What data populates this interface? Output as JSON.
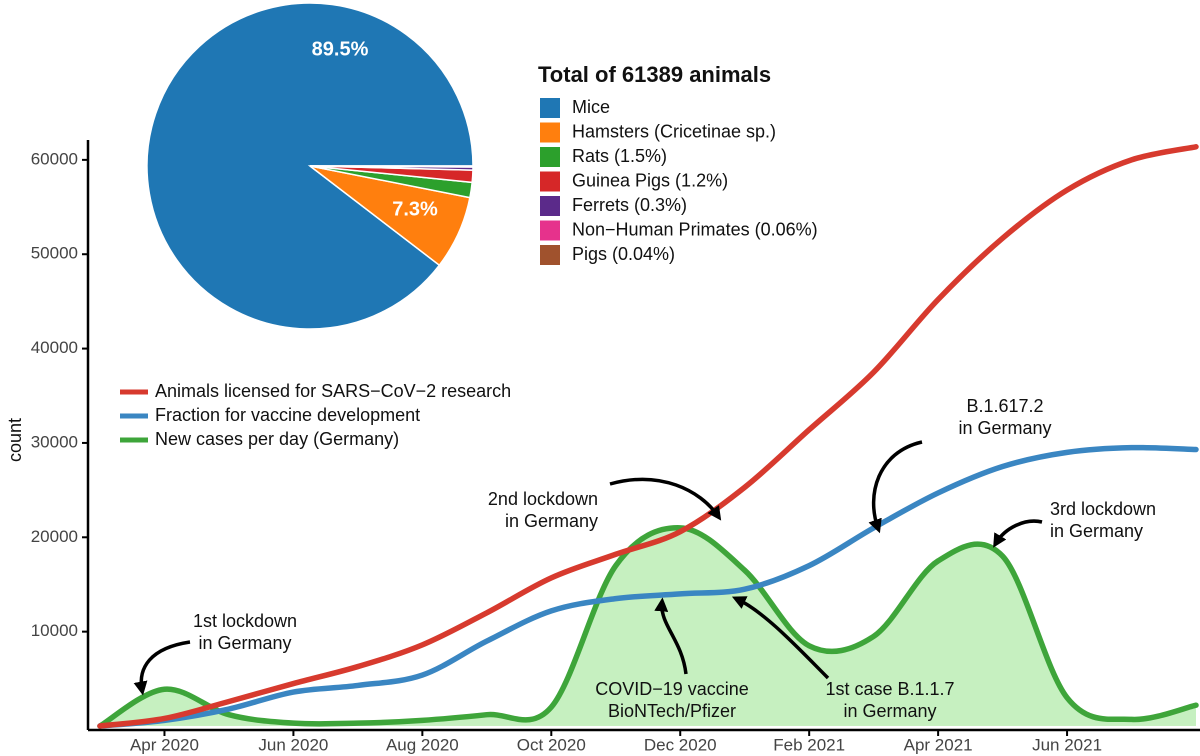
{
  "chart_data": [
    {
      "type": "line",
      "y_label": "count",
      "x": [
        "Mar 2020",
        "Apr 2020",
        "May 2020",
        "Jun 2020",
        "Jul 2020",
        "Aug 2020",
        "Sep 2020",
        "Oct 2020",
        "Nov 2020",
        "Dec 2020",
        "Jan 2021",
        "Feb 2021",
        "Mar 2021",
        "Apr 2021",
        "May 2021",
        "Jun 2021",
        "Jul 2021",
        "Aug 2021"
      ],
      "xticks": [
        "Apr 2020",
        "Jun 2020",
        "Aug 2020",
        "Oct 2020",
        "Dec 2020",
        "Feb 2021",
        "Apr 2021",
        "Jun 2021"
      ],
      "ylim": [
        0,
        62000
      ],
      "yticks": [
        10000,
        20000,
        30000,
        40000,
        50000,
        60000
      ],
      "legend": "left",
      "series": [
        {
          "name": "Animals licensed for SARS−CoV−2 research",
          "color": "#d73a2e",
          "values": [
            0,
            800,
            2600,
            4500,
            6300,
            8600,
            12000,
            15700,
            18200,
            20600,
            25300,
            31400,
            37500,
            45200,
            51700,
            56800,
            60000,
            61389
          ]
        },
        {
          "name": "Fraction for vaccine development",
          "color": "#3a86c2",
          "values": [
            0,
            600,
            1800,
            3600,
            4300,
            5400,
            9000,
            12200,
            13500,
            14000,
            14500,
            17000,
            21000,
            24700,
            27500,
            29000,
            29500,
            29300
          ]
        },
        {
          "name": "New cases per day (Germany)",
          "color": "#3ea53a",
          "fill": "#c6f0c0",
          "values": [
            0,
            3900,
            1200,
            300,
            300,
            600,
            1200,
            2000,
            17000,
            21000,
            16500,
            8500,
            9500,
            17500,
            18000,
            3000,
            700,
            2200
          ]
        }
      ],
      "annotations": [
        {
          "lines": [
            "1st lockdown",
            "in Germany"
          ]
        },
        {
          "lines": [
            "2nd lockdown",
            "in Germany"
          ]
        },
        {
          "lines": [
            "B.1.617.2",
            "in Germany"
          ]
        },
        {
          "lines": [
            "3rd lockdown",
            "in Germany"
          ]
        },
        {
          "lines": [
            "COVID−19 vaccine",
            "BioNTech/Pfizer"
          ]
        },
        {
          "lines": [
            "1st case B.1.1.7",
            "in Germany"
          ]
        }
      ]
    },
    {
      "type": "pie",
      "title": "Total of 61389 animals",
      "categories": [
        "Mice",
        "Hamsters (Cricetinae sp.)",
        "Rats (1.5%)",
        "Guinea Pigs (1.2%)",
        "Ferrets (0.3%)",
        "Non−Human Primates (0.06%)",
        "Pigs (0.04%)"
      ],
      "values": [
        89.5,
        7.3,
        1.5,
        1.2,
        0.3,
        0.06,
        0.04
      ],
      "value_labels": [
        "89.5%",
        "7.3%",
        null,
        null,
        null,
        null,
        null
      ],
      "colors": [
        "#1f77b4",
        "#ff7f0e",
        "#2ca02c",
        "#d62728",
        "#5b2a8a",
        "#e6328c",
        "#a0522d"
      ]
    }
  ]
}
